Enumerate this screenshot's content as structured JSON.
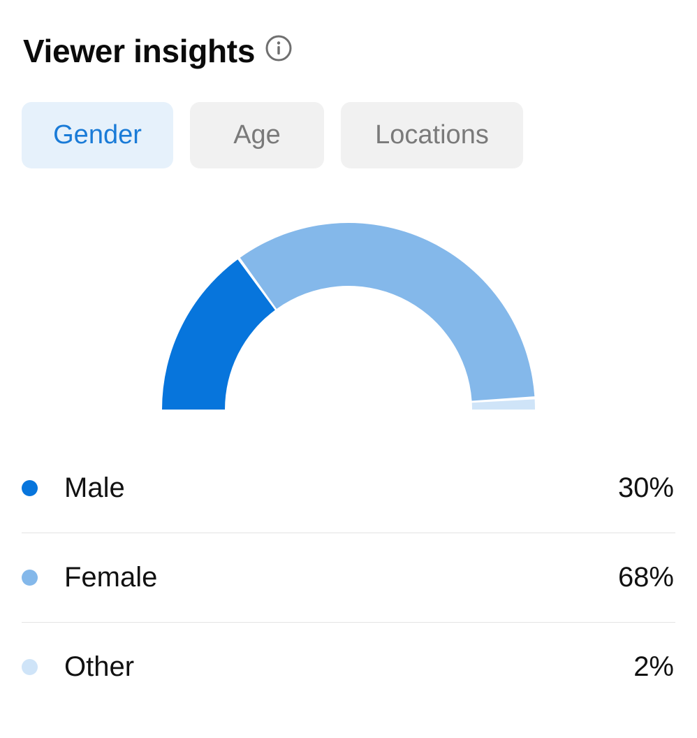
{
  "header": {
    "title": "Viewer insights",
    "info_icon": "info-circle-icon"
  },
  "tabs": [
    {
      "label": "Gender",
      "active": true
    },
    {
      "label": "Age",
      "active": false
    },
    {
      "label": "Locations",
      "active": false
    }
  ],
  "colors": {
    "male": "#0775dc",
    "female": "#84b8ea",
    "other": "#cfe4f8",
    "active_tab_bg": "#e6f1fb",
    "active_tab_text": "#1a7bd7",
    "inactive_tab_bg": "#f1f1f1",
    "inactive_tab_text": "#7a7a7a"
  },
  "chart_data": {
    "type": "pie",
    "categories": [
      "Male",
      "Female",
      "Other"
    ],
    "values": [
      30,
      68,
      2
    ],
    "title": "",
    "legend": "bottom"
  },
  "legend": [
    {
      "label": "Male",
      "value": "30%"
    },
    {
      "label": "Female",
      "value": "68%"
    },
    {
      "label": "Other",
      "value": "2%"
    }
  ]
}
